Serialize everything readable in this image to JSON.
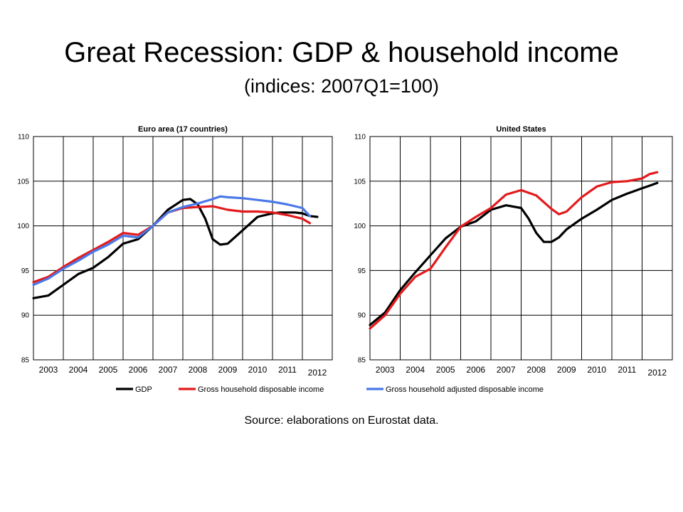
{
  "header": {
    "title": "Great Recession: GDP & household income",
    "subtitle": "(indices: 2007Q1=100)"
  },
  "footer": {
    "source": "Source: elaborations on Eurostat data."
  },
  "colors": {
    "gdp": "#000000",
    "gross": "#e31a1c",
    "adjusted": "#4a78e8"
  },
  "chart_data": [
    {
      "type": "line",
      "title": "Euro area (17 countries)",
      "ylim": [
        85,
        110
      ],
      "yticks": [
        85,
        90,
        95,
        100,
        105,
        110
      ],
      "xlim": [
        2003,
        2013
      ],
      "xticks": [
        "2003",
        "2004",
        "2005",
        "2006",
        "2007",
        "2008",
        "2009",
        "2010",
        "2011",
        "2012"
      ],
      "grid": true,
      "series": [
        {
          "name": "GDP",
          "x": [
            2003.0,
            2003.5,
            2004.0,
            2004.5,
            2005.0,
            2005.5,
            2006.0,
            2006.5,
            2007.0,
            2007.5,
            2008.0,
            2008.25,
            2008.5,
            2008.75,
            2009.0,
            2009.25,
            2009.5,
            2010.0,
            2010.5,
            2011.0,
            2011.25,
            2011.5,
            2011.75,
            2012.0,
            2012.25,
            2012.5
          ],
          "y": [
            91.9,
            92.2,
            93.4,
            94.6,
            95.3,
            96.5,
            98.0,
            98.5,
            100.0,
            101.8,
            102.9,
            103.0,
            102.4,
            100.8,
            98.5,
            97.9,
            98.0,
            99.5,
            101.0,
            101.4,
            101.5,
            101.5,
            101.5,
            101.4,
            101.1,
            101.0
          ]
        },
        {
          "name": "Gross household disposable income",
          "x": [
            2003.0,
            2003.5,
            2004.0,
            2004.5,
            2005.0,
            2005.5,
            2006.0,
            2006.5,
            2007.0,
            2007.5,
            2008.0,
            2008.5,
            2009.0,
            2009.5,
            2010.0,
            2010.5,
            2011.0,
            2011.5,
            2012.0,
            2012.25
          ],
          "y": [
            93.7,
            94.3,
            95.4,
            96.4,
            97.3,
            98.2,
            99.2,
            99.0,
            100.0,
            101.5,
            102.0,
            102.1,
            102.2,
            101.8,
            101.6,
            101.6,
            101.5,
            101.2,
            100.8,
            100.3
          ]
        },
        {
          "name": "Gross household adjusted disposable income",
          "x": [
            2003.0,
            2003.5,
            2004.0,
            2004.5,
            2005.0,
            2005.5,
            2006.0,
            2006.5,
            2007.0,
            2007.5,
            2008.0,
            2008.5,
            2009.0,
            2009.25,
            2009.5,
            2010.0,
            2010.5,
            2011.0,
            2011.5,
            2012.0,
            2012.25
          ],
          "y": [
            93.4,
            94.1,
            95.2,
            96.1,
            97.1,
            97.9,
            98.9,
            98.7,
            100.0,
            101.5,
            102.1,
            102.5,
            103.0,
            103.3,
            103.2,
            103.1,
            102.9,
            102.7,
            102.4,
            102.0,
            101.1
          ]
        }
      ]
    },
    {
      "type": "line",
      "title": "United States",
      "ylim": [
        85,
        110
      ],
      "yticks": [
        85,
        90,
        95,
        100,
        105,
        110
      ],
      "xlim": [
        2003,
        2013
      ],
      "xticks": [
        "2003",
        "2004",
        "2005",
        "2006",
        "2007",
        "2008",
        "2009",
        "2010",
        "2011",
        "2012"
      ],
      "grid": true,
      "series": [
        {
          "name": "GDP",
          "x": [
            2003.0,
            2003.5,
            2004.0,
            2004.5,
            2005.0,
            2005.5,
            2006.0,
            2006.5,
            2007.0,
            2007.5,
            2008.0,
            2008.25,
            2008.5,
            2008.75,
            2009.0,
            2009.25,
            2009.5,
            2010.0,
            2010.5,
            2011.0,
            2011.5,
            2012.0,
            2012.25,
            2012.5
          ],
          "y": [
            88.9,
            90.3,
            92.8,
            94.8,
            96.7,
            98.6,
            99.9,
            100.5,
            101.8,
            102.3,
            102.0,
            100.8,
            99.2,
            98.2,
            98.2,
            98.7,
            99.6,
            100.8,
            101.8,
            102.9,
            103.6,
            104.2,
            104.5,
            104.8
          ]
        },
        {
          "name": "Gross household disposable income",
          "x": [
            2003.0,
            2003.5,
            2004.0,
            2004.5,
            2005.0,
            2005.5,
            2006.0,
            2006.5,
            2007.0,
            2007.5,
            2008.0,
            2008.5,
            2009.0,
            2009.25,
            2009.5,
            2010.0,
            2010.5,
            2011.0,
            2011.5,
            2012.0,
            2012.25,
            2012.5
          ],
          "y": [
            88.5,
            90.0,
            92.4,
            94.3,
            95.2,
            97.6,
            99.9,
            101.0,
            102.0,
            103.5,
            104.0,
            103.4,
            101.9,
            101.3,
            101.6,
            103.2,
            104.4,
            104.9,
            105.0,
            105.3,
            105.8,
            106.0
          ]
        }
      ]
    }
  ]
}
